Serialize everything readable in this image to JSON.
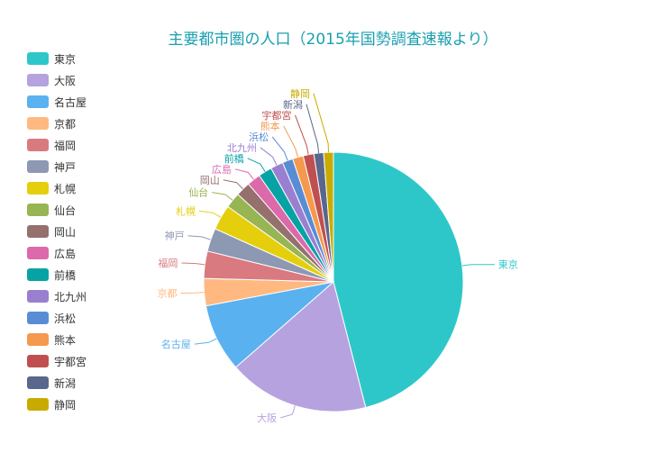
{
  "chart_data": {
    "type": "pie",
    "title": "主要都市圏の人口（2015年国勢調査速報より）",
    "series": [
      {
        "name": "東京",
        "value": 3800,
        "color": "#2ec7c9"
      },
      {
        "name": "大阪",
        "value": 1450,
        "color": "#b6a2de"
      },
      {
        "name": "名古屋",
        "value": 700,
        "color": "#5ab1ef"
      },
      {
        "name": "京都",
        "value": 280,
        "color": "#ffb980"
      },
      {
        "name": "福岡",
        "value": 280,
        "color": "#d87a80"
      },
      {
        "name": "神戸",
        "value": 240,
        "color": "#8d98b3"
      },
      {
        "name": "札幌",
        "value": 260,
        "color": "#e5cf0d"
      },
      {
        "name": "仙台",
        "value": 160,
        "color": "#97b552"
      },
      {
        "name": "岡山",
        "value": 150,
        "color": "#95706d"
      },
      {
        "name": "広島",
        "value": 140,
        "color": "#dc69aa"
      },
      {
        "name": "前橋",
        "value": 140,
        "color": "#07a2a4"
      },
      {
        "name": "北九州",
        "value": 130,
        "color": "#9a7fd1"
      },
      {
        "name": "浜松",
        "value": 110,
        "color": "#588dd5"
      },
      {
        "name": "熊本",
        "value": 110,
        "color": "#f5994e"
      },
      {
        "name": "宇都宮",
        "value": 110,
        "color": "#c05050"
      },
      {
        "name": "新潟",
        "value": 100,
        "color": "#59678c"
      },
      {
        "name": "静岡",
        "value": 100,
        "color": "#c9ab00"
      }
    ],
    "legend_position": "left"
  }
}
